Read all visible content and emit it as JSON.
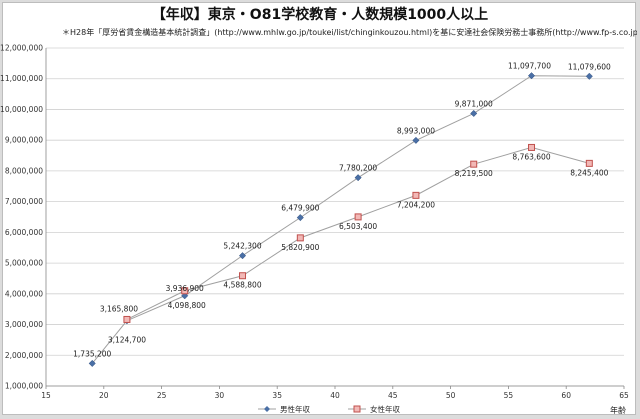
{
  "chart_data": {
    "type": "line",
    "title": "【年収】東京・O81学校教育・人数規模1000人以上",
    "source": "＊H28年「厚労省賃金構造基本統計調査」(http://www.mhlw.go.jp/toukei/list/chinginkouzou.html)を基に安達社会保険労務士事務所(http://www.fp-s.co.jp)が作成",
    "xlabel": "年齢",
    "ylabel": "",
    "xlim": [
      15,
      65
    ],
    "xticks": [
      15,
      20,
      25,
      30,
      35,
      40,
      45,
      50,
      55,
      60,
      65
    ],
    "ylim": [
      1000000,
      12000000
    ],
    "yticks": [
      1000000,
      2000000,
      3000000,
      4000000,
      5000000,
      6000000,
      7000000,
      8000000,
      9000000,
      10000000,
      11000000,
      12000000
    ],
    "ytick_labels": [
      "1,000,000",
      "2,000,000",
      "3,000,000",
      "4,000,000",
      "5,000,000",
      "6,000,000",
      "7,000,000",
      "8,000,000",
      "9,000,000",
      "10,000,000",
      "11,000,000",
      "12,000,000"
    ],
    "grid": "horizontal",
    "legend_position": "bottom",
    "series": [
      {
        "name": "男性年収",
        "color": "#4a6fa5",
        "marker": "diamond",
        "x": [
          19,
          22,
          27,
          32,
          37,
          42,
          47,
          52,
          57,
          62
        ],
        "values": [
          1735200,
          3124700,
          3936900,
          5242300,
          6479900,
          7780200,
          8993000,
          9871000,
          11097700,
          11079600
        ],
        "labels": [
          "1,735,200",
          "3,124,700",
          "3,936,900",
          "5,242,300",
          "6,479,900",
          "7,780,200",
          "8,993,000",
          "9,871,000",
          "11,097,700",
          "11,079,600"
        ]
      },
      {
        "name": "女性年収",
        "color": "#c0504d",
        "marker": "square",
        "x": [
          22,
          27,
          32,
          37,
          42,
          47,
          52,
          57,
          62
        ],
        "values": [
          3165800,
          4098800,
          4588800,
          5820900,
          6503400,
          7204200,
          8219500,
          8763600,
          8245400
        ],
        "labels": [
          "3,165,800",
          "4,098,800",
          "4,588,800",
          "5,820,900",
          "6,503,400",
          "7,204,200",
          "8,219,500",
          "8,763,600",
          "8,245,400"
        ]
      }
    ]
  }
}
